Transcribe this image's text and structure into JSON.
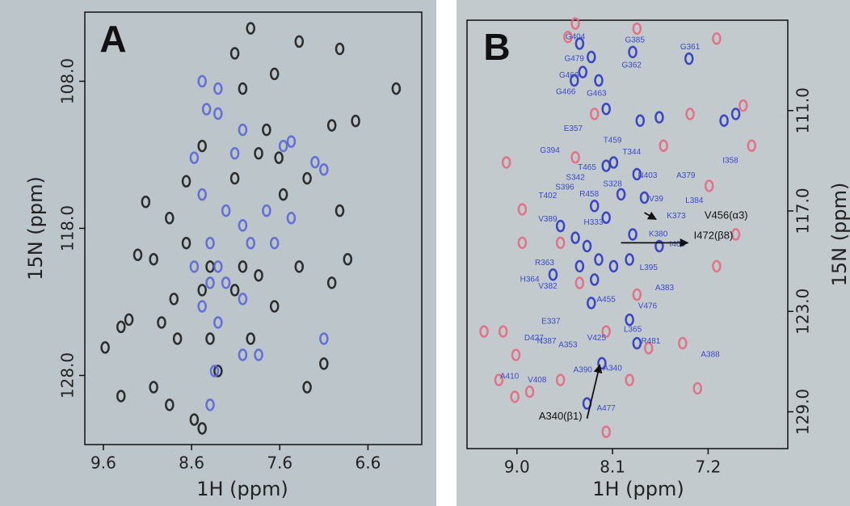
{
  "chart_data": [
    {
      "type": "scatter",
      "panel_label": "A",
      "xlabel": "1H (ppm)",
      "ylabel": "15N (ppm)",
      "xlim": [
        9.81,
        5.99
      ],
      "ylim": [
        132.7,
        103.3
      ],
      "xticks": [
        9.6,
        8.6,
        7.6,
        6.6
      ],
      "yticks": [
        {
          "value": 108,
          "label": "108.0"
        },
        {
          "value": 118,
          "label": "118.0"
        },
        {
          "value": 128,
          "label": "128.0"
        }
      ],
      "series": [
        {
          "color": "#1c1c1c",
          "x": [
            7.93,
            8.11,
            7.38,
            6.92,
            7.66,
            8.02,
            7.01,
            7.75,
            6.74,
            8.48,
            8.66,
            9.12,
            8.85,
            7.84,
            7.61,
            8.11,
            7.29,
            9.21,
            9.03,
            8.66,
            8.39,
            8.02,
            7.84,
            8.11,
            8.48,
            8.8,
            7.66,
            7.38,
            7.01,
            6.83,
            9.31,
            9.4,
            9.58,
            8.94,
            8.76,
            8.39,
            7.93,
            8.3,
            9.4,
            9.03,
            8.85,
            8.57,
            7.29,
            8.48,
            6.28,
            6.92,
            7.56,
            7.1
          ],
          "y": [
            104.4,
            106.1,
            105.3,
            105.8,
            107.5,
            108.5,
            111.0,
            111.3,
            110.7,
            112.4,
            114.8,
            116.2,
            117.3,
            112.9,
            113.2,
            114.6,
            114.6,
            119.8,
            120.1,
            119.0,
            120.6,
            120.6,
            121.2,
            122.2,
            122.2,
            122.8,
            123.3,
            120.6,
            121.7,
            120.1,
            124.2,
            124.7,
            126.1,
            124.4,
            125.5,
            125.5,
            125.5,
            127.7,
            129.4,
            128.8,
            130.0,
            131.0,
            128.8,
            131.6,
            108.5,
            116.8,
            115.7,
            127.2
          ]
        },
        {
          "color": "#5a66d6",
          "x": [
            8.48,
            8.3,
            8.3,
            8.43,
            8.02,
            7.56,
            7.47,
            7.2,
            7.1,
            8.11,
            8.57,
            8.48,
            8.21,
            8.02,
            7.93,
            8.39,
            8.57,
            8.3,
            8.21,
            8.02,
            8.39,
            8.48,
            8.3,
            8.02,
            7.84,
            8.34,
            7.1,
            7.75,
            7.66,
            7.47,
            8.39
          ],
          "y": [
            108.0,
            108.5,
            110.2,
            109.9,
            111.3,
            112.4,
            112.1,
            113.5,
            114.0,
            112.9,
            113.2,
            115.7,
            116.8,
            117.8,
            119.0,
            119.0,
            120.6,
            120.6,
            121.7,
            122.8,
            121.7,
            123.3,
            124.4,
            126.6,
            126.6,
            127.7,
            125.5,
            116.8,
            119.0,
            117.3,
            130.0
          ]
        }
      ]
    },
    {
      "type": "scatter",
      "panel_label": "B",
      "xlabel": "1H (ppm)",
      "ylabel": "15N (ppm)",
      "xlim": [
        9.47,
        6.45
      ],
      "ylim": [
        131.2,
        105.6
      ],
      "xticks": [
        {
          "value": 9,
          "label": "9.0"
        },
        8.1,
        7.2
      ],
      "yticks": [
        {
          "value": 111,
          "label": "111.0"
        },
        {
          "value": 117,
          "label": "117.0"
        },
        {
          "value": 123,
          "label": "123.0"
        },
        {
          "value": 129,
          "label": "129.0"
        }
      ],
      "series": [
        {
          "color": "#e46a80",
          "x": [
            8.45,
            8.52,
            7.87,
            7.12,
            6.87,
            6.79,
            9.1,
            9.31,
            9.13,
            9.01,
            9.17,
            9.02,
            8.88,
            7.3,
            7.44,
            7.12,
            8.16,
            7.76,
            7.94,
            7.62,
            7.37,
            8.45,
            8.95,
            8.59,
            8.41,
            7.87,
            8.16,
            6.94,
            7.19,
            8.27,
            8.95,
            8.59
          ],
          "y": [
            105.8,
            106.6,
            106.1,
            106.7,
            110.7,
            113.1,
            114.1,
            124.2,
            124.2,
            125.6,
            127.1,
            128.1,
            127.8,
            127.6,
            124.9,
            120.3,
            124.2,
            125.2,
            127.1,
            113.1,
            111.2,
            113.8,
            118.9,
            118.9,
            121.3,
            122.0,
            130.2,
            118.4,
            115.5,
            111.2,
            116.9,
            127.1
          ]
        },
        {
          "color": "#2b38c4",
          "x": [
            8.41,
            8.3,
            8.38,
            8.46,
            8.23,
            7.91,
            7.38,
            8.16,
            7.84,
            7.66,
            7.05,
            6.94,
            8.09,
            7.87,
            8.16,
            8.02,
            7.8,
            8.27,
            8.59,
            8.45,
            8.34,
            8.23,
            8.09,
            7.94,
            7.66,
            8.16,
            7.91,
            8.41,
            8.27,
            8.66,
            8.3,
            7.94,
            7.87,
            8.2,
            8.34
          ],
          "y": [
            107.0,
            107.8,
            108.7,
            109.2,
            109.2,
            107.5,
            107.9,
            110.9,
            111.6,
            111.4,
            111.6,
            111.2,
            114.1,
            114.8,
            114.3,
            116.0,
            116.2,
            116.7,
            117.9,
            118.6,
            119.1,
            119.9,
            120.3,
            119.9,
            119.1,
            117.4,
            118.4,
            120.3,
            121.1,
            120.8,
            122.5,
            123.5,
            124.9,
            126.1,
            128.5
          ]
        }
      ],
      "annotations": [
        {
          "text": "G404",
          "x": 8.45,
          "y": 106.6
        },
        {
          "text": "G385",
          "x": 7.89,
          "y": 106.8
        },
        {
          "text": "G361",
          "x": 7.37,
          "y": 107.2
        },
        {
          "text": "G479",
          "x": 8.46,
          "y": 107.9
        },
        {
          "text": "G362",
          "x": 7.92,
          "y": 108.3
        },
        {
          "text": "G466",
          "x": 8.51,
          "y": 108.9
        },
        {
          "text": "G466",
          "x": 8.54,
          "y": 109.9
        },
        {
          "text": "G463",
          "x": 8.25,
          "y": 110.0
        },
        {
          "text": "E357",
          "x": 8.47,
          "y": 112.1
        },
        {
          "text": "G394",
          "x": 8.69,
          "y": 113.4
        },
        {
          "text": "T459",
          "x": 8.1,
          "y": 112.8
        },
        {
          "text": "T344",
          "x": 7.92,
          "y": 113.5
        },
        {
          "text": "I358",
          "x": 6.99,
          "y": 114.0
        },
        {
          "text": "T465",
          "x": 8.34,
          "y": 114.4
        },
        {
          "text": "S342",
          "x": 8.45,
          "y": 115.0
        },
        {
          "text": "N403",
          "x": 7.77,
          "y": 114.9
        },
        {
          "text": "A379",
          "x": 7.41,
          "y": 114.9
        },
        {
          "text": "S396",
          "x": 8.55,
          "y": 115.6
        },
        {
          "text": "S328",
          "x": 8.1,
          "y": 115.4
        },
        {
          "text": "T402",
          "x": 8.71,
          "y": 116.1
        },
        {
          "text": "R458",
          "x": 8.32,
          "y": 116.0
        },
        {
          "text": "V39",
          "x": 7.69,
          "y": 116.3
        },
        {
          "text": "L384",
          "x": 7.33,
          "y": 116.4
        },
        {
          "text": "K373",
          "x": 7.5,
          "y": 117.3
        },
        {
          "text": "V389",
          "x": 8.71,
          "y": 117.5
        },
        {
          "text": "H333",
          "x": 8.28,
          "y": 117.7
        },
        {
          "text": "K380",
          "x": 7.67,
          "y": 118.4
        },
        {
          "text": "I400",
          "x": 7.49,
          "y": 119.0
        },
        {
          "text": "R363",
          "x": 8.74,
          "y": 120.1
        },
        {
          "text": "L395",
          "x": 7.76,
          "y": 120.4
        },
        {
          "text": "H364",
          "x": 8.88,
          "y": 121.1
        },
        {
          "text": "V382",
          "x": 8.71,
          "y": 121.5
        },
        {
          "text": "A383",
          "x": 7.61,
          "y": 121.6
        },
        {
          "text": "A455",
          "x": 8.16,
          "y": 122.3
        },
        {
          "text": "V476",
          "x": 7.77,
          "y": 122.7
        },
        {
          "text": "E337",
          "x": 8.68,
          "y": 123.6
        },
        {
          "text": "L365",
          "x": 7.91,
          "y": 124.1
        },
        {
          "text": "D427",
          "x": 8.84,
          "y": 124.6
        },
        {
          "text": "N387",
          "x": 8.72,
          "y": 124.8
        },
        {
          "text": "V425",
          "x": 8.25,
          "y": 124.6
        },
        {
          "text": "A353",
          "x": 8.52,
          "y": 125.0
        },
        {
          "text": "R481",
          "x": 7.74,
          "y": 124.8
        },
        {
          "text": "A388",
          "x": 7.18,
          "y": 125.6
        },
        {
          "text": "A390",
          "x": 8.38,
          "y": 126.5
        },
        {
          "text": "A340",
          "x": 8.1,
          "y": 126.4
        },
        {
          "text": "A410",
          "x": 9.07,
          "y": 126.9
        },
        {
          "text": "V408",
          "x": 8.81,
          "y": 127.1
        },
        {
          "text": "A477",
          "x": 8.16,
          "y": 128.8
        }
      ],
      "callouts": [
        {
          "text": "V456(α3)",
          "x": 7.03,
          "y": 117.3,
          "from": [
            7.8,
            117.1
          ],
          "to": [
            7.69,
            117.5
          ]
        },
        {
          "text": "I472(β8)",
          "x": 7.15,
          "y": 118.5,
          "from": [
            8.02,
            118.9
          ],
          "to": [
            7.39,
            118.9
          ]
        },
        {
          "text": "A340(β1)",
          "x": 8.59,
          "y": 129.3,
          "from": [
            8.34,
            129.4
          ],
          "to": [
            8.22,
            126.2
          ]
        }
      ]
    }
  ]
}
